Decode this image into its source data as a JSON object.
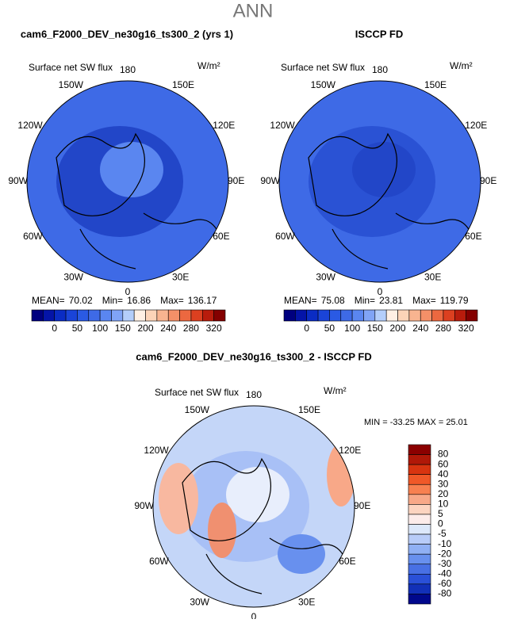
{
  "figure": {
    "title": "ANN",
    "panels": [
      {
        "title": "cam6_F2000_DEV_ne30g16_ts300_2 (yrs 1)",
        "field": "Surface net SW flux",
        "units": "W/m²",
        "lon_labels": [
          "180",
          "150E",
          "120E",
          "90E",
          "60E",
          "30E",
          "0",
          "30W",
          "60W",
          "90W",
          "120W",
          "150W"
        ],
        "stats": [
          {
            "label": "MEAN=",
            "value": "70.02"
          },
          {
            "label": "Min=",
            "value": "16.86"
          },
          {
            "label": "Max=",
            "value": "136.17"
          }
        ],
        "fill": "#3e6ae6",
        "patch": "#2246c8",
        "core": "#5a86f0"
      },
      {
        "title": "ISCCP FD",
        "field": "Surface net SW flux",
        "units": "W/m²",
        "lon_labels": [
          "180",
          "150E",
          "120E",
          "90E",
          "60E",
          "30E",
          "0",
          "30W",
          "60W",
          "90W",
          "120W",
          "150W"
        ],
        "stats": [
          {
            "label": "MEAN=",
            "value": "75.08"
          },
          {
            "label": "Min=",
            "value": "23.81"
          },
          {
            "label": "Max=",
            "value": "119.79"
          }
        ],
        "fill": "#3e6ae6",
        "patch": "#2a52d4",
        "core": "#2246c8"
      }
    ],
    "top_colorbar": {
      "labels": [
        "0",
        "50",
        "100",
        "150",
        "200",
        "240",
        "280",
        "320"
      ],
      "colors": [
        "#00007f",
        "#0414a8",
        "#0a2cc4",
        "#1a44d8",
        "#2a5ae4",
        "#3e6ae6",
        "#5a86f0",
        "#80a4f6",
        "#b4cefa",
        "#fff0e4",
        "#fcd4b8",
        "#f8b490",
        "#f49068",
        "#ec6840",
        "#dc4020",
        "#b81c0c",
        "#840000"
      ]
    },
    "diff_panel": {
      "title": "cam6_F2000_DEV_ne30g16_ts300_2 - ISCCP FD",
      "field": "Surface net SW flux",
      "units": "W/m²",
      "lon_labels": [
        "180",
        "150E",
        "120E",
        "90E",
        "60E",
        "30E",
        "0",
        "30W",
        "60W",
        "90W",
        "120W",
        "150W"
      ],
      "stats": "MIN = -33.25 MAX =  25.01",
      "colorbar_labels": [
        "80",
        "60",
        "40",
        "30",
        "20",
        "10",
        "5",
        "0",
        "-5",
        "-10",
        "-20",
        "-30",
        "-40",
        "-60",
        "-80"
      ],
      "colorbar_colors": [
        "#8b0000",
        "#b01808",
        "#d83410",
        "#f05828",
        "#f88050",
        "#f8a888",
        "#fcd4c0",
        "#fcecea",
        "#dce8fa",
        "#b8ccf8",
        "#90b0f4",
        "#6890ee",
        "#4870e4",
        "#2a50d8",
        "#1230b8",
        "#00088c"
      ]
    }
  }
}
